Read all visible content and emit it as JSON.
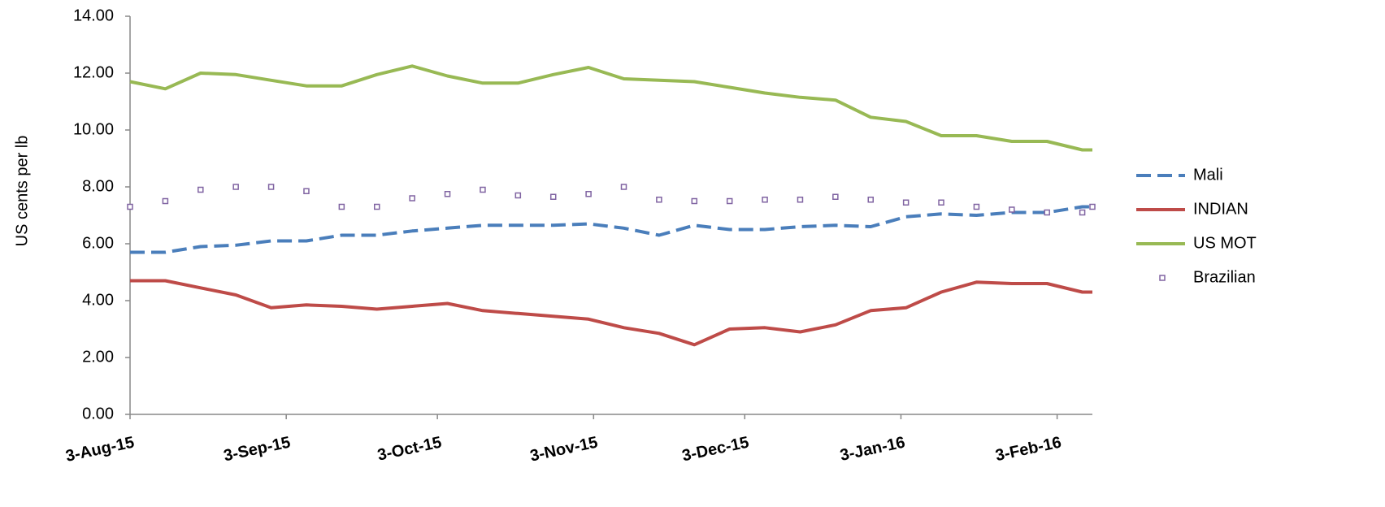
{
  "chart_data": {
    "type": "line",
    "y_label": "US cents per lb",
    "x": [
      "2015-08-03",
      "2015-08-10",
      "2015-08-17",
      "2015-08-24",
      "2015-08-31",
      "2015-09-07",
      "2015-09-14",
      "2015-09-21",
      "2015-09-28",
      "2015-10-05",
      "2015-10-12",
      "2015-10-19",
      "2015-10-26",
      "2015-11-02",
      "2015-11-09",
      "2015-11-16",
      "2015-11-23",
      "2015-11-30",
      "2015-12-07",
      "2015-12-14",
      "2015-12-21",
      "2015-12-28",
      "2016-01-04",
      "2016-01-11",
      "2016-01-18",
      "2016-01-25",
      "2016-02-01",
      "2016-02-08",
      "2016-02-10"
    ],
    "series": [
      {
        "name": "Mali",
        "color": "#4a7ebb",
        "style": "dashed",
        "values": [
          5.7,
          5.7,
          5.9,
          5.95,
          6.1,
          6.1,
          6.3,
          6.3,
          6.45,
          6.55,
          6.65,
          6.65,
          6.65,
          6.7,
          6.55,
          6.3,
          6.65,
          6.5,
          6.5,
          6.6,
          6.65,
          6.6,
          6.95,
          7.05,
          7.0,
          7.1,
          7.1,
          7.3,
          7.3
        ]
      },
      {
        "name": "INDIAN",
        "color": "#be4b48",
        "style": "solid",
        "values": [
          4.7,
          4.7,
          4.45,
          4.2,
          3.75,
          3.85,
          3.8,
          3.7,
          3.8,
          3.9,
          3.65,
          3.55,
          3.45,
          3.35,
          3.05,
          2.85,
          2.45,
          3.0,
          3.05,
          2.9,
          3.15,
          3.65,
          3.75,
          4.3,
          4.65,
          4.6,
          4.6,
          4.3,
          4.3
        ]
      },
      {
        "name": "US MOT",
        "color": "#98b954",
        "style": "solid",
        "values": [
          11.7,
          11.45,
          12.0,
          11.95,
          11.75,
          11.55,
          11.55,
          11.95,
          12.25,
          11.9,
          11.65,
          11.65,
          11.95,
          12.2,
          11.8,
          11.75,
          11.7,
          11.5,
          11.3,
          11.15,
          11.05,
          10.45,
          10.3,
          9.8,
          9.8,
          9.6,
          9.6,
          9.3,
          9.3
        ]
      },
      {
        "name": "Brazilian",
        "color": "#8064a2",
        "style": "marker",
        "values": [
          7.3,
          7.5,
          7.9,
          8.0,
          8.0,
          7.85,
          7.3,
          7.3,
          7.6,
          7.75,
          7.9,
          7.7,
          7.65,
          7.75,
          8.0,
          7.55,
          7.5,
          7.5,
          7.55,
          7.55,
          7.65,
          7.55,
          7.45,
          7.45,
          7.3,
          7.2,
          7.1,
          7.1,
          7.3
        ]
      }
    ],
    "xlim": [
      "2015-08-03",
      "2016-02-10"
    ],
    "xticks": [
      {
        "value": "2015-08-03",
        "label": "3-Aug-15"
      },
      {
        "value": "2015-09-03",
        "label": "3-Sep-15"
      },
      {
        "value": "2015-10-03",
        "label": "3-Oct-15"
      },
      {
        "value": "2015-11-03",
        "label": "3-Nov-15"
      },
      {
        "value": "2015-12-03",
        "label": "3-Dec-15"
      },
      {
        "value": "2016-01-03",
        "label": "3-Jan-16"
      },
      {
        "value": "2016-02-03",
        "label": "3-Feb-16"
      }
    ],
    "ylim": [
      0,
      14
    ],
    "yticks": [
      {
        "value": 0,
        "label": "0.00"
      },
      {
        "value": 2,
        "label": "2.00"
      },
      {
        "value": 4,
        "label": "4.00"
      },
      {
        "value": 6,
        "label": "6.00"
      },
      {
        "value": 8,
        "label": "8.00"
      },
      {
        "value": 10,
        "label": "10.00"
      },
      {
        "value": 12,
        "label": "12.00"
      },
      {
        "value": 14,
        "label": "14.00"
      }
    ],
    "legend": "right"
  }
}
